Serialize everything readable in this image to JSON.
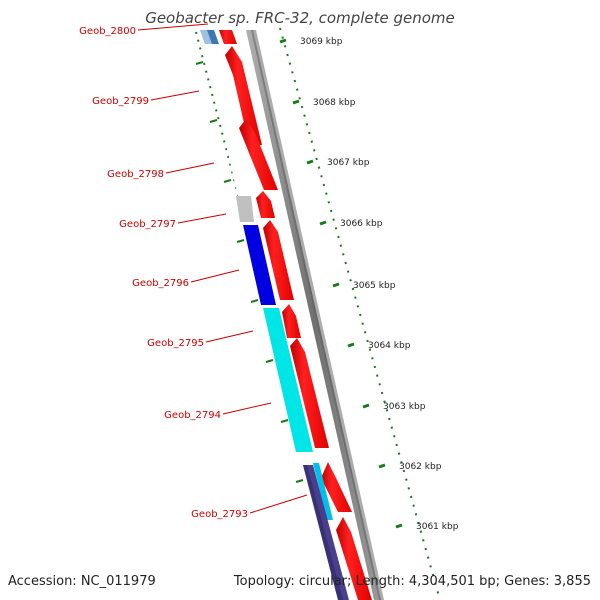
{
  "title": "Geobacter sp. FRC-32, complete genome",
  "footer": {
    "accession": "Accession: NC_011979",
    "summary": "Topology: circular; Length: 4,304,501 bp; Genes: 3,855"
  },
  "colors": {
    "forward_gene": "#ff0000",
    "label": "#cc0000",
    "tick": "#1a7a1a",
    "backbone": "#808080",
    "gene_light_grey": "#c0c0c0",
    "gene_blue": "#0000e0",
    "gene_cyan": "#00e6e6",
    "gene_steel": "#3d7ab5",
    "gene_indigo": "#4a3f8c"
  },
  "scale": {
    "unit": "kbp",
    "ticks": [
      "3069 kbp",
      "3068 kbp",
      "3067 kbp",
      "3066 kbp",
      "3065 kbp",
      "3064 kbp",
      "3063 kbp",
      "3062 kbp",
      "3061 kbp"
    ]
  },
  "gene_labels": [
    "Geob_2800",
    "Geob_2799",
    "Geob_2798",
    "Geob_2797",
    "Geob_2796",
    "Geob_2795",
    "Geob_2794",
    "Geob_2793"
  ]
}
